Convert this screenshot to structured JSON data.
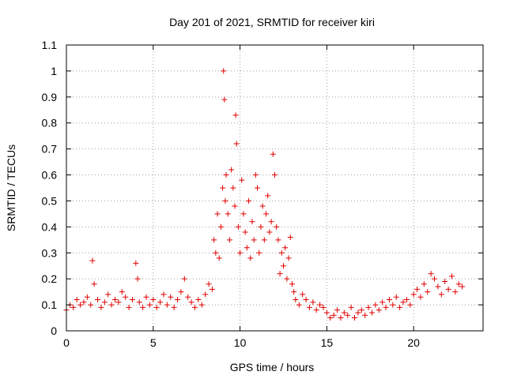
{
  "chart_data": {
    "type": "scatter",
    "title": "Day 201 of 2021, SRMTID for receiver kiri",
    "xlabel": "GPS time / hours",
    "ylabel": "SRMTID / TECUs",
    "xlim": [
      0,
      24
    ],
    "ylim": [
      0,
      1.1
    ],
    "xticks": [
      0,
      5,
      10,
      15,
      20
    ],
    "xtick_labels": [
      "0",
      "5",
      "10",
      "15",
      "20"
    ],
    "yticks": [
      0,
      0.1,
      0.2,
      0.3,
      0.4,
      0.5,
      0.6,
      0.7,
      0.8,
      0.9,
      1,
      1.1
    ],
    "ytick_labels": [
      "0",
      "0.1",
      "0.2",
      "0.3",
      "0.4",
      "0.5",
      "0.6",
      "0.7",
      "0.8",
      "0.9",
      "1",
      "1.1"
    ],
    "grid": true,
    "marker": "+",
    "color": "#e00000",
    "series": [
      {
        "name": "SRMTID",
        "x": [
          0.0,
          0.2,
          0.4,
          0.6,
          0.8,
          1.0,
          1.2,
          1.4,
          1.5,
          1.6,
          1.8,
          2.0,
          2.2,
          2.4,
          2.6,
          2.8,
          3.0,
          3.2,
          3.4,
          3.6,
          3.8,
          4.0,
          4.1,
          4.2,
          4.4,
          4.6,
          4.8,
          5.0,
          5.2,
          5.4,
          5.6,
          5.8,
          6.0,
          6.2,
          6.4,
          6.6,
          6.8,
          7.0,
          7.2,
          7.4,
          7.6,
          7.8,
          8.0,
          8.2,
          8.4,
          8.5,
          8.6,
          8.7,
          8.8,
          8.9,
          9.0,
          9.05,
          9.1,
          9.15,
          9.2,
          9.3,
          9.4,
          9.5,
          9.6,
          9.7,
          9.75,
          9.8,
          9.9,
          10.0,
          10.1,
          10.2,
          10.3,
          10.4,
          10.5,
          10.6,
          10.7,
          10.8,
          10.9,
          11.0,
          11.1,
          11.2,
          11.3,
          11.4,
          11.5,
          11.6,
          11.7,
          11.8,
          11.9,
          12.0,
          12.1,
          12.2,
          12.3,
          12.4,
          12.5,
          12.6,
          12.7,
          12.8,
          12.9,
          13.0,
          13.1,
          13.2,
          13.4,
          13.6,
          13.8,
          14.0,
          14.2,
          14.4,
          14.6,
          14.8,
          15.0,
          15.2,
          15.4,
          15.6,
          15.8,
          16.0,
          16.2,
          16.4,
          16.6,
          16.8,
          17.0,
          17.2,
          17.4,
          17.6,
          17.8,
          18.0,
          18.2,
          18.4,
          18.6,
          18.8,
          19.0,
          19.2,
          19.4,
          19.6,
          19.8,
          20.0,
          20.2,
          20.4,
          20.6,
          20.8,
          21.0,
          21.2,
          21.4,
          21.6,
          21.8,
          22.0,
          22.2,
          22.4,
          22.6,
          22.8
        ],
        "y": [
          0.08,
          0.1,
          0.09,
          0.12,
          0.1,
          0.11,
          0.13,
          0.1,
          0.27,
          0.18,
          0.12,
          0.09,
          0.11,
          0.14,
          0.1,
          0.12,
          0.11,
          0.15,
          0.13,
          0.09,
          0.12,
          0.26,
          0.2,
          0.11,
          0.09,
          0.13,
          0.1,
          0.12,
          0.09,
          0.11,
          0.14,
          0.1,
          0.13,
          0.09,
          0.12,
          0.15,
          0.2,
          0.13,
          0.11,
          0.09,
          0.12,
          0.1,
          0.14,
          0.18,
          0.16,
          0.35,
          0.3,
          0.45,
          0.28,
          0.4,
          0.55,
          1.0,
          0.89,
          0.5,
          0.6,
          0.45,
          0.35,
          0.62,
          0.55,
          0.48,
          0.83,
          0.72,
          0.4,
          0.3,
          0.58,
          0.45,
          0.38,
          0.32,
          0.5,
          0.28,
          0.42,
          0.35,
          0.6,
          0.55,
          0.3,
          0.4,
          0.48,
          0.35,
          0.45,
          0.52,
          0.38,
          0.42,
          0.68,
          0.6,
          0.4,
          0.35,
          0.22,
          0.3,
          0.25,
          0.32,
          0.2,
          0.28,
          0.36,
          0.18,
          0.15,
          0.12,
          0.1,
          0.14,
          0.12,
          0.09,
          0.11,
          0.08,
          0.1,
          0.09,
          0.07,
          0.05,
          0.06,
          0.08,
          0.05,
          0.07,
          0.06,
          0.09,
          0.05,
          0.07,
          0.08,
          0.06,
          0.09,
          0.07,
          0.1,
          0.08,
          0.11,
          0.09,
          0.12,
          0.1,
          0.13,
          0.09,
          0.11,
          0.12,
          0.1,
          0.14,
          0.16,
          0.13,
          0.18,
          0.15,
          0.22,
          0.2,
          0.17,
          0.14,
          0.19,
          0.16,
          0.21,
          0.15,
          0.18,
          0.17
        ]
      }
    ]
  }
}
